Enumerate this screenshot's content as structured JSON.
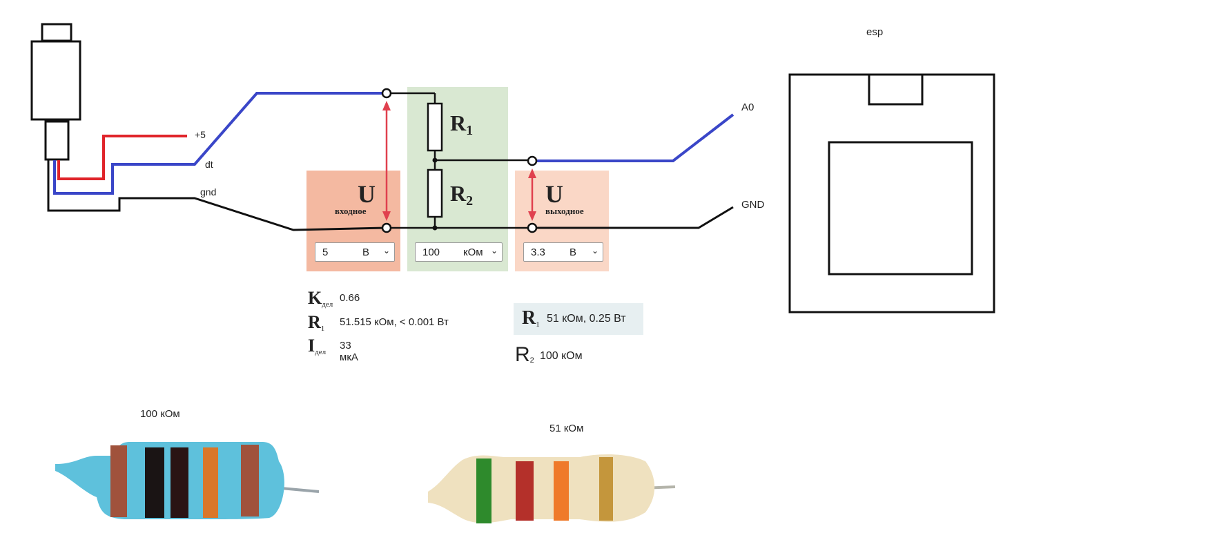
{
  "sensor_labels": {
    "plus5": "+5",
    "dt": "dt",
    "gnd": "gnd"
  },
  "esp": {
    "title": "esp",
    "pin_a0": "A0",
    "pin_gnd": "GND"
  },
  "divider": {
    "u_symbol": "U",
    "u_in_label": "входное",
    "u_out_label": "выходное",
    "r1_label": "R",
    "r1_sub": "1",
    "r2_label": "R",
    "r2_sub": "2",
    "input_voltage": {
      "value": "5",
      "unit": "В"
    },
    "resistance": {
      "value": "100",
      "unit": "кОм"
    },
    "output_voltage": {
      "value": "3.3",
      "unit": "В"
    }
  },
  "results": [
    {
      "symbol": "K",
      "sub": "дел",
      "value": "0.66"
    },
    {
      "symbol": "R",
      "sub": "1",
      "value": "51.515 кОм, < 0.001 Вт"
    },
    {
      "symbol": "I",
      "sub": "дел",
      "value": "33 мкА"
    }
  ],
  "recommended": [
    {
      "symbol": "R",
      "sub": "1",
      "value": "51 кОм, 0.25 Вт"
    },
    {
      "symbol": "R",
      "sub": "2",
      "value": "100 кОм"
    }
  ],
  "photos": [
    {
      "caption": "100 кОм",
      "band_colors": [
        "#a0523c",
        "#1a1414",
        "#2a1414",
        "#d9772a",
        "#a0523c"
      ]
    },
    {
      "caption": "51 кОм",
      "band_colors": [
        "#2e8a2c",
        "#b4302a",
        "#ef7a2a",
        "#c4963c"
      ]
    }
  ],
  "colors": {
    "wire_red": "#e0242a",
    "wire_blue": "#3a46c8",
    "wire_black": "#111111",
    "arrow": "#e0404e",
    "panel_in": "#f4b9a1",
    "panel_mid": "#d9e8d2",
    "panel_out": "#fad7c6"
  }
}
